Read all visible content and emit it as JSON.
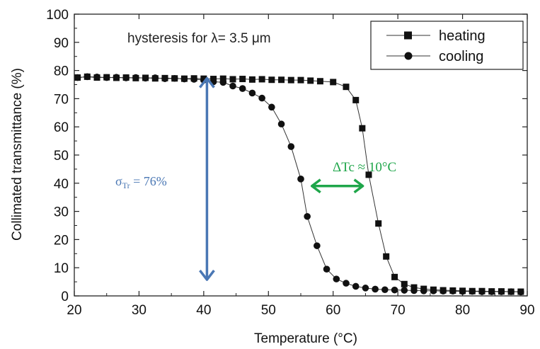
{
  "chart_data": {
    "type": "scatter",
    "title": "",
    "annotation": "hysteresis for λ= 3.5 μm",
    "xlabel": "Temperature (°C)",
    "ylabel": "Collimated transmittance (%)",
    "xlim": [
      20,
      90
    ],
    "ylim": [
      0,
      100
    ],
    "xticks": [
      20,
      30,
      40,
      50,
      60,
      70,
      80,
      90
    ],
    "yticks": [
      0,
      10,
      20,
      30,
      40,
      50,
      60,
      70,
      80,
      90,
      100
    ],
    "grid": false,
    "legend_position": "top-right",
    "series": [
      {
        "name": "heating",
        "marker": "square",
        "x": [
          20.5,
          22,
          23.5,
          25,
          26.5,
          28,
          29.5,
          31,
          32.5,
          34,
          35.5,
          37,
          38.5,
          40,
          41.5,
          43,
          44.5,
          46,
          47.5,
          49,
          50.5,
          52,
          53.5,
          55,
          56.5,
          58,
          60,
          62,
          63.5,
          64.5,
          65.5,
          67,
          68.2,
          69.5,
          71,
          72.5,
          74,
          75.5,
          77,
          78.5,
          80,
          81.5,
          83,
          84.5,
          86,
          87.5,
          89
        ],
        "y": [
          77.5,
          77.8,
          77.5,
          77.6,
          77.4,
          77.5,
          77.3,
          77.4,
          77.2,
          77.3,
          77.2,
          77.1,
          77.2,
          77.1,
          77.0,
          77.1,
          76.9,
          77.0,
          76.8,
          76.9,
          76.7,
          76.7,
          76.6,
          76.6,
          76.4,
          76.2,
          75.9,
          74.2,
          69.5,
          59.5,
          43.0,
          25.7,
          14.0,
          6.7,
          4.2,
          3.0,
          2.5,
          2.2,
          2.0,
          1.9,
          1.8,
          1.7,
          1.7,
          1.6,
          1.6,
          1.5,
          1.5
        ]
      },
      {
        "name": "cooling",
        "marker": "circle",
        "x": [
          20.5,
          22,
          23.5,
          25,
          26.5,
          28,
          29.5,
          31,
          32.5,
          34,
          35.5,
          37,
          38.5,
          40,
          41.5,
          43,
          44.5,
          46,
          47.5,
          49,
          50.5,
          52,
          53.5,
          55,
          56,
          57.5,
          59,
          60.5,
          62,
          63.5,
          65,
          66.5,
          68,
          69.5,
          71,
          72.5,
          74,
          75.5,
          77,
          78.5,
          80,
          81.5,
          83,
          84.5,
          86,
          87.5,
          89
        ],
        "y": [
          77.5,
          77.8,
          77.7,
          77.5,
          77.6,
          77.4,
          77.5,
          77.3,
          77.4,
          77.1,
          77.2,
          77.0,
          76.9,
          76.6,
          76.0,
          75.8,
          74.5,
          73.6,
          72.0,
          70.2,
          67.0,
          61.0,
          53.0,
          41.5,
          28.2,
          17.8,
          9.5,
          6.0,
          4.5,
          3.4,
          2.8,
          2.4,
          2.2,
          2.1,
          2.0,
          1.9,
          1.8,
          1.8,
          1.7,
          1.7,
          1.6,
          1.6,
          1.5,
          1.5,
          1.5,
          1.5,
          1.4
        ]
      }
    ],
    "overlays": {
      "sigma_label": "σTr = 76%",
      "sigma_symbol": "σ",
      "sigma_sub": "Tr",
      "sigma_value": " = 76%",
      "sigma_arrow": {
        "x": 40.5,
        "y_from": 78,
        "y_to": 5,
        "color": "#4a77b4"
      },
      "delta_label": "ΔTc ≈ 10°C",
      "delta_arrow": {
        "y": 39,
        "x_from": 56.5,
        "x_to": 64.8,
        "color": "#1fa64a"
      }
    }
  }
}
